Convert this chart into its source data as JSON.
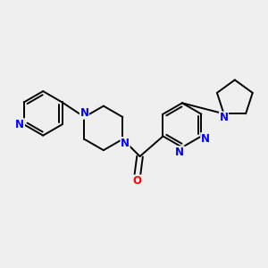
{
  "bg_color": "#efefef",
  "bond_color": "#000000",
  "N_color": "#0000ff",
  "O_color": "#ff0000",
  "line_width": 1.4,
  "dbo": 0.06,
  "fontsize": 8.5,
  "xlim": [
    -2.6,
    2.8
  ],
  "ylim": [
    -1.8,
    1.8
  ]
}
